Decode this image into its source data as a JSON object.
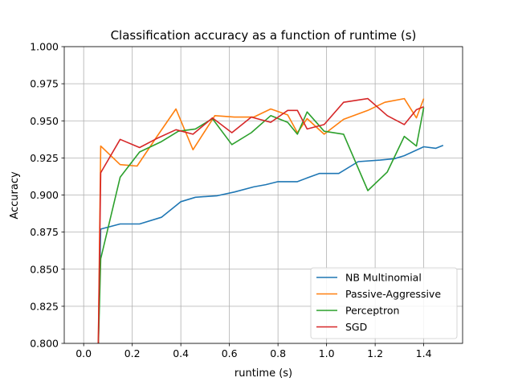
{
  "chart_data": {
    "type": "line",
    "title": "Classification accuracy as a function of runtime (s)",
    "xlabel": "runtime (s)",
    "ylabel": "Accuracy",
    "xlim": [
      -0.08,
      1.56
    ],
    "ylim": [
      0.8,
      1.0
    ],
    "xticks": [
      0.0,
      0.2,
      0.4,
      0.6,
      0.8,
      1.0,
      1.2,
      1.4
    ],
    "xtick_labels": [
      "0.0",
      "0.2",
      "0.4",
      "0.6",
      "0.8",
      "1.0",
      "1.2",
      "1.4"
    ],
    "yticks": [
      0.8,
      0.825,
      0.85,
      0.875,
      0.9,
      0.925,
      0.95,
      0.975,
      1.0
    ],
    "ytick_labels": [
      "0.800",
      "0.825",
      "0.850",
      "0.875",
      "0.900",
      "0.925",
      "0.950",
      "0.975",
      "1.000"
    ],
    "grid": true,
    "legend_position": "lower-right",
    "series": [
      {
        "name": "NB Multinomial",
        "color": "#1f77b4",
        "x": [
          0.06,
          0.07,
          0.15,
          0.23,
          0.32,
          0.4,
          0.46,
          0.55,
          0.62,
          0.7,
          0.75,
          0.8,
          0.88,
          0.92,
          0.97,
          1.05,
          1.13,
          1.22,
          1.28,
          1.32,
          1.4,
          1.45,
          1.48
        ],
        "y": [
          0.795,
          0.877,
          0.8805,
          0.8805,
          0.885,
          0.8955,
          0.8985,
          0.8995,
          0.902,
          0.9055,
          0.907,
          0.909,
          0.909,
          0.9115,
          0.9145,
          0.9145,
          0.9225,
          0.9235,
          0.9245,
          0.9265,
          0.9325,
          0.9315,
          0.9335
        ]
      },
      {
        "name": "Passive-Aggressive",
        "color": "#ff7f0e",
        "x": [
          0.06,
          0.07,
          0.15,
          0.22,
          0.3,
          0.38,
          0.45,
          0.54,
          0.62,
          0.7,
          0.77,
          0.84,
          0.88,
          0.92,
          0.99,
          1.07,
          1.17,
          1.24,
          1.32,
          1.37,
          1.4
        ],
        "y": [
          0.795,
          0.933,
          0.9205,
          0.9195,
          0.939,
          0.958,
          0.9305,
          0.9535,
          0.9525,
          0.9525,
          0.958,
          0.954,
          0.942,
          0.9515,
          0.941,
          0.951,
          0.957,
          0.9625,
          0.965,
          0.952,
          0.965
        ]
      },
      {
        "name": "Perceptron",
        "color": "#2ca02c",
        "x": [
          0.06,
          0.07,
          0.15,
          0.23,
          0.32,
          0.39,
          0.46,
          0.53,
          0.61,
          0.69,
          0.77,
          0.84,
          0.88,
          0.92,
          0.99,
          1.07,
          1.17,
          1.25,
          1.32,
          1.37,
          1.4
        ],
        "y": [
          0.795,
          0.857,
          0.912,
          0.929,
          0.936,
          0.943,
          0.9445,
          0.9515,
          0.934,
          0.942,
          0.9535,
          0.949,
          0.941,
          0.956,
          0.943,
          0.941,
          0.903,
          0.9155,
          0.9395,
          0.933,
          0.959
        ]
      },
      {
        "name": "SGD",
        "color": "#d62728",
        "x": [
          0.06,
          0.07,
          0.15,
          0.23,
          0.3,
          0.38,
          0.45,
          0.53,
          0.61,
          0.69,
          0.77,
          0.84,
          0.88,
          0.92,
          0.99,
          1.07,
          1.17,
          1.25,
          1.32,
          1.37,
          1.4
        ],
        "y": [
          0.795,
          0.915,
          0.9375,
          0.932,
          0.938,
          0.944,
          0.941,
          0.952,
          0.942,
          0.9525,
          0.949,
          0.957,
          0.957,
          0.9445,
          0.9475,
          0.9625,
          0.965,
          0.9535,
          0.9475,
          0.9575,
          0.9595
        ]
      }
    ]
  }
}
